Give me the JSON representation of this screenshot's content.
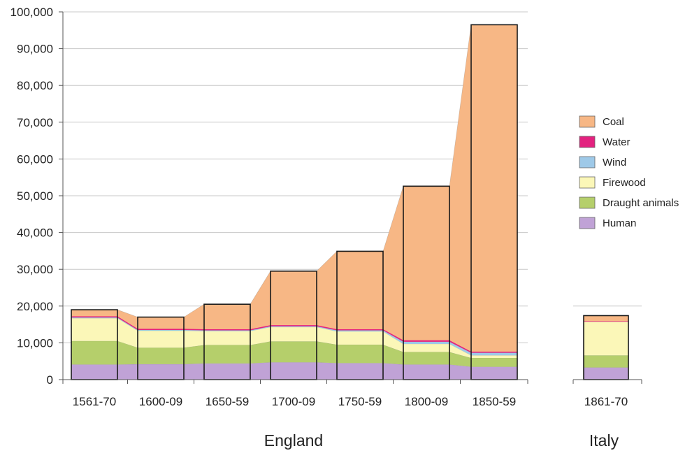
{
  "chart_data": {
    "type": "area",
    "stacked": true,
    "ylim": [
      0,
      100000
    ],
    "yticks": [
      "0",
      "10,000",
      "20,000",
      "30,000",
      "40,000",
      "50,000",
      "60,000",
      "70,000",
      "80,000",
      "90,000",
      "100,000"
    ],
    "grid": true,
    "legend_position": "right",
    "series_order": [
      "Human",
      "Draught animals",
      "Firewood",
      "Wind",
      "Water",
      "Coal"
    ],
    "colors": {
      "Human": "#c0a2d6",
      "Draught animals": "#b5cf6b",
      "Firewood": "#fbf7b8",
      "Wind": "#9ec9e8",
      "Water": "#e3227f",
      "Coal": "#f7b785"
    },
    "legend": [
      "Coal",
      "Water",
      "Wind",
      "Firewood",
      "Draught animals",
      "Human"
    ],
    "groups": [
      {
        "label": "England",
        "categories": [
          "1561-70",
          "1600-09",
          "1650-59",
          "1700-09",
          "1750-59",
          "1800-09",
          "1850-59"
        ],
        "series": [
          {
            "name": "Human",
            "values": [
              4100,
              4200,
              4400,
              4700,
              4500,
              4100,
              3500
            ]
          },
          {
            "name": "Draught animals",
            "values": [
              6400,
              4500,
              5000,
              5700,
              5000,
              3400,
              2400
            ]
          },
          {
            "name": "Firewood",
            "values": [
              6200,
              4600,
              3800,
              3900,
              3600,
              2200,
              700
            ]
          },
          {
            "name": "Wind",
            "values": [
              200,
              200,
              200,
              200,
              300,
              600,
              700
            ]
          },
          {
            "name": "Water",
            "values": [
              300,
              300,
              300,
              300,
              300,
              400,
              300
            ]
          },
          {
            "name": "Coal",
            "values": [
              1800,
              3200,
              6800,
              14700,
              21200,
              41900,
              88900
            ]
          }
        ]
      },
      {
        "label": "Italy",
        "categories": [
          "1861-70"
        ],
        "series": [
          {
            "name": "Human",
            "values": [
              3300
            ]
          },
          {
            "name": "Draught animals",
            "values": [
              3300
            ]
          },
          {
            "name": "Firewood",
            "values": [
              9200
            ]
          },
          {
            "name": "Wind",
            "values": [
              0
            ]
          },
          {
            "name": "Water",
            "values": [
              100
            ]
          },
          {
            "name": "Coal",
            "values": [
              1500
            ]
          }
        ]
      }
    ]
  }
}
